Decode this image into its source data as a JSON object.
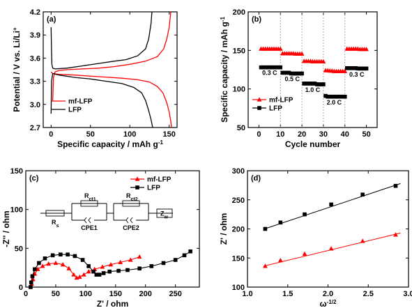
{
  "chart_data": [
    {
      "panel": "(a)",
      "type": "line",
      "xlabel": "Specific capacity / mAh g",
      "xlabel_sup": "-1",
      "ylabel": "Potential / V vs. Li/Li",
      "ylabel_sup": "+",
      "xlim": [
        -10,
        160
      ],
      "ylim": [
        2.7,
        4.2
      ],
      "xticks": [
        0,
        50,
        100,
        150
      ],
      "yticks": [
        2.7,
        3.0,
        3.3,
        3.6,
        3.9,
        4.2
      ],
      "ytick_labels": [
        "2.7",
        "3.0",
        "3.3",
        "3.6",
        "3.9",
        "4.2"
      ],
      "legend": "lower-left",
      "series": [
        {
          "name": "mf-LFP",
          "color": "#ff0000",
          "marker": "none",
          "charge": [
            [
              2,
              3.05
            ],
            [
              3,
              3.35
            ],
            [
              5,
              3.42
            ],
            [
              10,
              3.44
            ],
            [
              20,
              3.45
            ],
            [
              40,
              3.46
            ],
            [
              60,
              3.47
            ],
            [
              80,
              3.49
            ],
            [
              100,
              3.52
            ],
            [
              120,
              3.56
            ],
            [
              135,
              3.62
            ],
            [
              143,
              3.72
            ],
            [
              147,
              3.85
            ],
            [
              150,
              4.0
            ],
            [
              152,
              4.2
            ]
          ],
          "discharge": [
            [
              0,
              3.42
            ],
            [
              2,
              3.4
            ],
            [
              10,
              3.39
            ],
            [
              30,
              3.38
            ],
            [
              60,
              3.36
            ],
            [
              90,
              3.34
            ],
            [
              110,
              3.32
            ],
            [
              125,
              3.29
            ],
            [
              135,
              3.23
            ],
            [
              142,
              3.15
            ],
            [
              147,
              3.02
            ],
            [
              150,
              2.9
            ],
            [
              152,
              2.78
            ],
            [
              153,
              2.7
            ]
          ]
        },
        {
          "name": "LFP",
          "color": "#000000",
          "marker": "none",
          "charge": [
            [
              0,
              4.0
            ],
            [
              0.5,
              3.7
            ],
            [
              1,
              3.52
            ],
            [
              2,
              3.47
            ],
            [
              5,
              3.46
            ],
            [
              20,
              3.47
            ],
            [
              40,
              3.5
            ],
            [
              60,
              3.53
            ],
            [
              80,
              3.56
            ],
            [
              95,
              3.58
            ],
            [
              110,
              3.63
            ],
            [
              120,
              3.72
            ],
            [
              124,
              3.85
            ],
            [
              127,
              4.05
            ],
            [
              128,
              4.2
            ]
          ],
          "discharge": [
            [
              0,
              2.88
            ],
            [
              0.5,
              3.3
            ],
            [
              2,
              3.4
            ],
            [
              10,
              3.38
            ],
            [
              30,
              3.35
            ],
            [
              50,
              3.33
            ],
            [
              70,
              3.3
            ],
            [
              90,
              3.27
            ],
            [
              105,
              3.22
            ],
            [
              115,
              3.15
            ],
            [
              120,
              3.05
            ],
            [
              124,
              2.92
            ],
            [
              127,
              2.8
            ],
            [
              129,
              2.7
            ]
          ]
        }
      ]
    },
    {
      "panel": "(b)",
      "type": "scatter",
      "xlabel": "Cycle number",
      "ylabel": "Specific capacity / mAh g",
      "ylabel_sup": "-1",
      "xlim": [
        -5,
        55
      ],
      "ylim": [
        50,
        200
      ],
      "xticks": [
        0,
        10,
        20,
        30,
        40,
        50
      ],
      "yticks": [
        50,
        100,
        150,
        200
      ],
      "legend": "lower-left",
      "dividers": [
        10,
        20,
        30,
        40
      ],
      "rate_labels": [
        {
          "text": "0.3 C",
          "x": 5,
          "y": 118
        },
        {
          "text": "0.5 C",
          "x": 15.5,
          "y": 110
        },
        {
          "text": "1.0 C",
          "x": 25,
          "y": 96
        },
        {
          "text": "2.0 C",
          "x": 35,
          "y": 80
        },
        {
          "text": "0.3 C",
          "x": 45.5,
          "y": 116
        }
      ],
      "series": [
        {
          "name": "mf-LFP",
          "color": "#ff0000",
          "marker": "triangle",
          "x": [
            1,
            2,
            3,
            4,
            5,
            6,
            7,
            8,
            9,
            10,
            11,
            12,
            13,
            14,
            15,
            16,
            17,
            18,
            19,
            20,
            21,
            22,
            23,
            24,
            25,
            26,
            27,
            28,
            29,
            30,
            31,
            32,
            33,
            34,
            35,
            36,
            37,
            38,
            39,
            40,
            41,
            42,
            43,
            44,
            45,
            46,
            47,
            48,
            49,
            50
          ],
          "y": [
            152,
            152,
            152,
            152,
            152,
            152,
            152,
            152,
            152,
            152,
            146,
            146,
            146,
            146,
            146,
            146,
            145.5,
            145.5,
            145.5,
            145.5,
            136,
            136,
            136,
            136,
            135.5,
            135.5,
            135.5,
            135.5,
            135.5,
            135.5,
            124,
            124,
            123.5,
            123.5,
            123,
            123,
            123,
            123,
            123,
            123,
            152,
            152,
            152,
            152,
            152,
            152,
            151.5,
            151.5,
            151.5,
            151.5
          ]
        },
        {
          "name": "LFP",
          "color": "#000000",
          "marker": "square",
          "x": [
            1,
            2,
            3,
            4,
            5,
            6,
            7,
            8,
            9,
            10,
            11,
            12,
            13,
            14,
            15,
            16,
            17,
            18,
            19,
            20,
            21,
            22,
            23,
            24,
            25,
            26,
            27,
            28,
            29,
            30,
            31,
            32,
            33,
            34,
            35,
            36,
            37,
            38,
            39,
            40,
            41,
            42,
            43,
            44,
            45,
            46,
            47,
            48,
            49,
            50
          ],
          "y": [
            128,
            128,
            128,
            128,
            128,
            128,
            128,
            128,
            128,
            128,
            121,
            121,
            121,
            121,
            120,
            120,
            120,
            120,
            120,
            120,
            107,
            107,
            107,
            107,
            107,
            107,
            106,
            106,
            106,
            106,
            91,
            90,
            90,
            90,
            90,
            90,
            90,
            90,
            90,
            90,
            127,
            127,
            127,
            127,
            127,
            126.5,
            126.5,
            126.5,
            126.5,
            126.5
          ]
        }
      ]
    },
    {
      "panel": "(c)",
      "type": "scatter",
      "xlabel": "Z' / ohm",
      "ylabel": "-Z'' / ohm",
      "xlim": [
        0,
        290
      ],
      "ylim": [
        0,
        150
      ],
      "xticks": [
        0,
        50,
        100,
        150,
        200,
        250
      ],
      "yticks": [
        0,
        50,
        100,
        150
      ],
      "legend": "top-right",
      "circuit_labels": [
        "R",
        "s",
        "R",
        "ct1",
        "R",
        "ct2",
        "Z",
        "w",
        "CPE1",
        "CPE2"
      ],
      "series": [
        {
          "name": "mf-LFP",
          "color": "#ff0000",
          "marker": "triangle",
          "x": [
            10,
            12,
            15,
            20,
            28,
            38,
            50,
            62,
            72,
            80,
            85,
            90,
            97,
            105,
            115,
            128,
            142,
            158,
            175,
            190
          ],
          "y": [
            4,
            10,
            17,
            23,
            27,
            30,
            31,
            29,
            24,
            16,
            12,
            13,
            16,
            20,
            23,
            26,
            29,
            32,
            35,
            39
          ]
        },
        {
          "name": "LFP",
          "color": "#000000",
          "marker": "square",
          "x": [
            8,
            9,
            11,
            15,
            22,
            32,
            45,
            58,
            70,
            82,
            95,
            105,
            113,
            118,
            123,
            130,
            140,
            155,
            170,
            190,
            210,
            230,
            250,
            265,
            275
          ],
          "y": [
            0,
            6,
            14,
            23,
            31,
            37,
            41,
            42,
            42,
            40,
            35,
            27,
            20,
            16,
            16,
            18,
            20,
            21,
            22,
            24,
            27,
            31,
            35,
            41,
            46
          ]
        }
      ]
    },
    {
      "panel": "(d)",
      "type": "scatter",
      "xlabel": "ω",
      "xlabel_sup": "-1/2",
      "ylabel": "Z' / ohm",
      "xlim": [
        1.0,
        3.0
      ],
      "ylim": [
        100,
        300
      ],
      "xticks": [
        1.0,
        1.5,
        2.0,
        2.5,
        3.0
      ],
      "xtick_labels": [
        "1.0",
        "1.5",
        "2.0",
        "2.5",
        "3.0"
      ],
      "yticks": [
        100,
        150,
        200,
        250,
        300
      ],
      "legend": "none",
      "series": [
        {
          "name": "LFP",
          "color": "#000000",
          "marker": "square",
          "x": [
            1.22,
            1.41,
            1.71,
            2.04,
            2.43,
            2.84
          ],
          "y": [
            200,
            211,
            225,
            242,
            259,
            274
          ],
          "fit": [
            [
              1.2,
              199.5
            ],
            [
              2.9,
              278
            ]
          ]
        },
        {
          "name": "mf-LFP",
          "color": "#ff0000",
          "marker": "triangle",
          "x": [
            1.22,
            1.41,
            1.71,
            2.04,
            2.43,
            2.84
          ],
          "y": [
            136,
            146,
            157,
            166,
            179,
            190
          ],
          "fit": [
            [
              1.2,
              136
            ],
            [
              2.9,
              193
            ]
          ]
        }
      ]
    }
  ]
}
